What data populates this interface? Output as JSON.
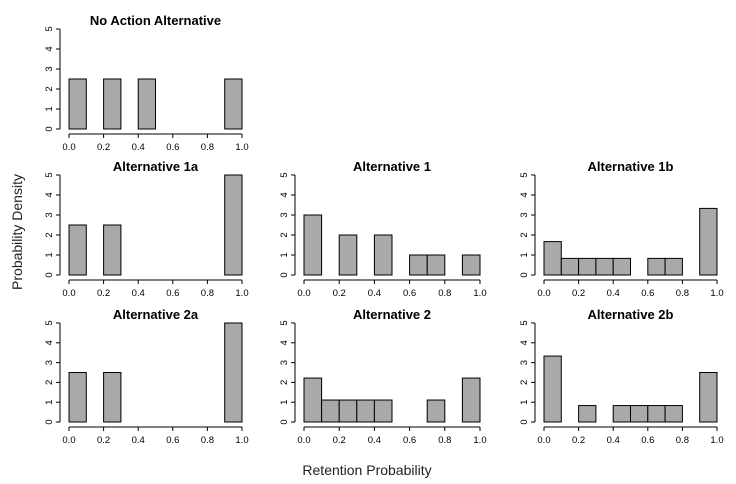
{
  "figure": {
    "xlabel": "Retention Probability",
    "ylabel": "Probability Density",
    "bar_color": "#a9a9a9"
  },
  "chart_data": [
    {
      "type": "bar",
      "title": "No Action Alternative",
      "bin_width": 0.1,
      "x": [
        0.05,
        0.25,
        0.45,
        0.95
      ],
      "values": [
        2.5,
        2.5,
        2.5,
        2.5
      ],
      "xlim": [
        0,
        1
      ],
      "ylim": [
        0,
        5
      ],
      "xticks": [
        "0.0",
        "0.2",
        "0.4",
        "0.6",
        "0.8",
        "1.0"
      ],
      "yticks": [
        "0",
        "1",
        "2",
        "3",
        "4",
        "5"
      ]
    },
    {
      "type": "bar",
      "title": "Alternative 1a",
      "bin_width": 0.1,
      "x": [
        0.05,
        0.25,
        0.95
      ],
      "values": [
        2.5,
        2.5,
        5
      ],
      "xlim": [
        0,
        1
      ],
      "ylim": [
        0,
        5
      ],
      "xticks": [
        "0.0",
        "0.2",
        "0.4",
        "0.6",
        "0.8",
        "1.0"
      ],
      "yticks": [
        "0",
        "1",
        "2",
        "3",
        "4",
        "5"
      ]
    },
    {
      "type": "bar",
      "title": "Alternative 1",
      "bin_width": 0.1,
      "x": [
        0.05,
        0.25,
        0.45,
        0.65,
        0.75,
        0.95
      ],
      "values": [
        3,
        2,
        2,
        1,
        1,
        1
      ],
      "xlim": [
        0,
        1
      ],
      "ylim": [
        0,
        5
      ],
      "xticks": [
        "0.0",
        "0.2",
        "0.4",
        "0.6",
        "0.8",
        "1.0"
      ],
      "yticks": [
        "0",
        "1",
        "2",
        "3",
        "4",
        "5"
      ]
    },
    {
      "type": "bar",
      "title": "Alternative 1b",
      "bin_width": 0.1,
      "x": [
        0.05,
        0.15,
        0.25,
        0.35,
        0.45,
        0.65,
        0.75,
        0.95
      ],
      "values": [
        1.67,
        0.83,
        0.83,
        0.83,
        0.83,
        0.83,
        0.83,
        3.33
      ],
      "xlim": [
        0,
        1
      ],
      "ylim": [
        0,
        5
      ],
      "xticks": [
        "0.0",
        "0.2",
        "0.4",
        "0.6",
        "0.8",
        "1.0"
      ],
      "yticks": [
        "0",
        "1",
        "2",
        "3",
        "4",
        "5"
      ]
    },
    {
      "type": "bar",
      "title": "Alternative 2a",
      "bin_width": 0.1,
      "x": [
        0.05,
        0.25,
        0.95
      ],
      "values": [
        2.5,
        2.5,
        5
      ],
      "xlim": [
        0,
        1
      ],
      "ylim": [
        0,
        5
      ],
      "xticks": [
        "0.0",
        "0.2",
        "0.4",
        "0.6",
        "0.8",
        "1.0"
      ],
      "yticks": [
        "0",
        "1",
        "2",
        "3",
        "4",
        "5"
      ]
    },
    {
      "type": "bar",
      "title": "Alternative 2",
      "bin_width": 0.1,
      "x": [
        0.05,
        0.15,
        0.25,
        0.35,
        0.45,
        0.75,
        0.95
      ],
      "values": [
        2.22,
        1.11,
        1.11,
        1.11,
        1.11,
        1.11,
        2.22
      ],
      "xlim": [
        0,
        1
      ],
      "ylim": [
        0,
        5
      ],
      "xticks": [
        "0.0",
        "0.2",
        "0.4",
        "0.6",
        "0.8",
        "1.0"
      ],
      "yticks": [
        "0",
        "1",
        "2",
        "3",
        "4",
        "5"
      ]
    },
    {
      "type": "bar",
      "title": "Alternative 2b",
      "bin_width": 0.1,
      "x": [
        0.05,
        0.25,
        0.45,
        0.55,
        0.65,
        0.75,
        0.95
      ],
      "values": [
        3.33,
        0.83,
        0.83,
        0.83,
        0.83,
        0.83,
        2.5
      ],
      "xlim": [
        0,
        1
      ],
      "ylim": [
        0,
        5
      ],
      "xticks": [
        "0.0",
        "0.2",
        "0.4",
        "0.6",
        "0.8",
        "1.0"
      ],
      "yticks": [
        "0",
        "1",
        "2",
        "3",
        "4",
        "5"
      ]
    }
  ]
}
